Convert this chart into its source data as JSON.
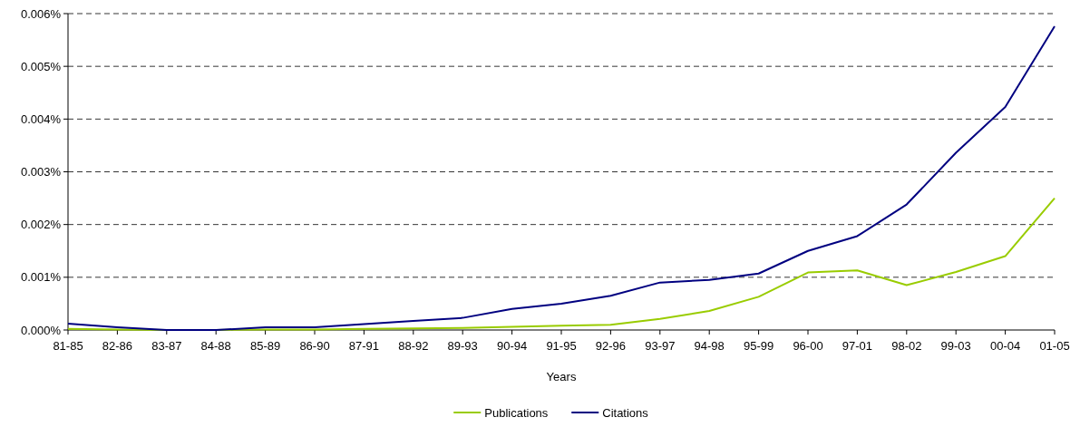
{
  "chart_data": {
    "type": "line",
    "xlabel": "Years",
    "categories": [
      "81-85",
      "82-86",
      "83-87",
      "84-88",
      "85-89",
      "86-90",
      "87-91",
      "88-92",
      "89-93",
      "90-94",
      "91-95",
      "92-96",
      "93-97",
      "94-98",
      "95-99",
      "96-00",
      "97-01",
      "98-02",
      "99-03",
      "00-04",
      "01-05"
    ],
    "series": [
      {
        "name": "Publications",
        "color": "#99cc00",
        "values": [
          2e-05,
          1e-05,
          0,
          0,
          1e-05,
          1e-05,
          2e-05,
          3e-05,
          4e-05,
          6e-05,
          8e-05,
          0.0001,
          0.00021,
          0.00036,
          0.00063,
          0.00109,
          0.00113,
          0.00085,
          0.0011,
          0.0014,
          0.0025
        ]
      },
      {
        "name": "Citations",
        "color": "#000080",
        "values": [
          0.00012,
          5e-05,
          0,
          0,
          5e-05,
          5e-05,
          0.00011,
          0.00017,
          0.00023,
          0.0004,
          0.0005,
          0.00065,
          0.0009,
          0.00095,
          0.00107,
          0.0015,
          0.00178,
          0.00238,
          0.00336,
          0.00423,
          0.00576
        ]
      }
    ],
    "ylim": [
      0,
      0.006
    ],
    "yticks": [
      {
        "value": 0,
        "label": "0.000%"
      },
      {
        "value": 0.001,
        "label": "0.001%"
      },
      {
        "value": 0.002,
        "label": "0.002%"
      },
      {
        "value": 0.003,
        "label": "0.003%"
      },
      {
        "value": 0.004,
        "label": "0.004%"
      },
      {
        "value": 0.005,
        "label": "0.005%"
      },
      {
        "value": 0.006,
        "label": "0.006%"
      }
    ],
    "grid": "y",
    "legend": "bottom",
    "marker": "none",
    "line_style": "solid"
  }
}
